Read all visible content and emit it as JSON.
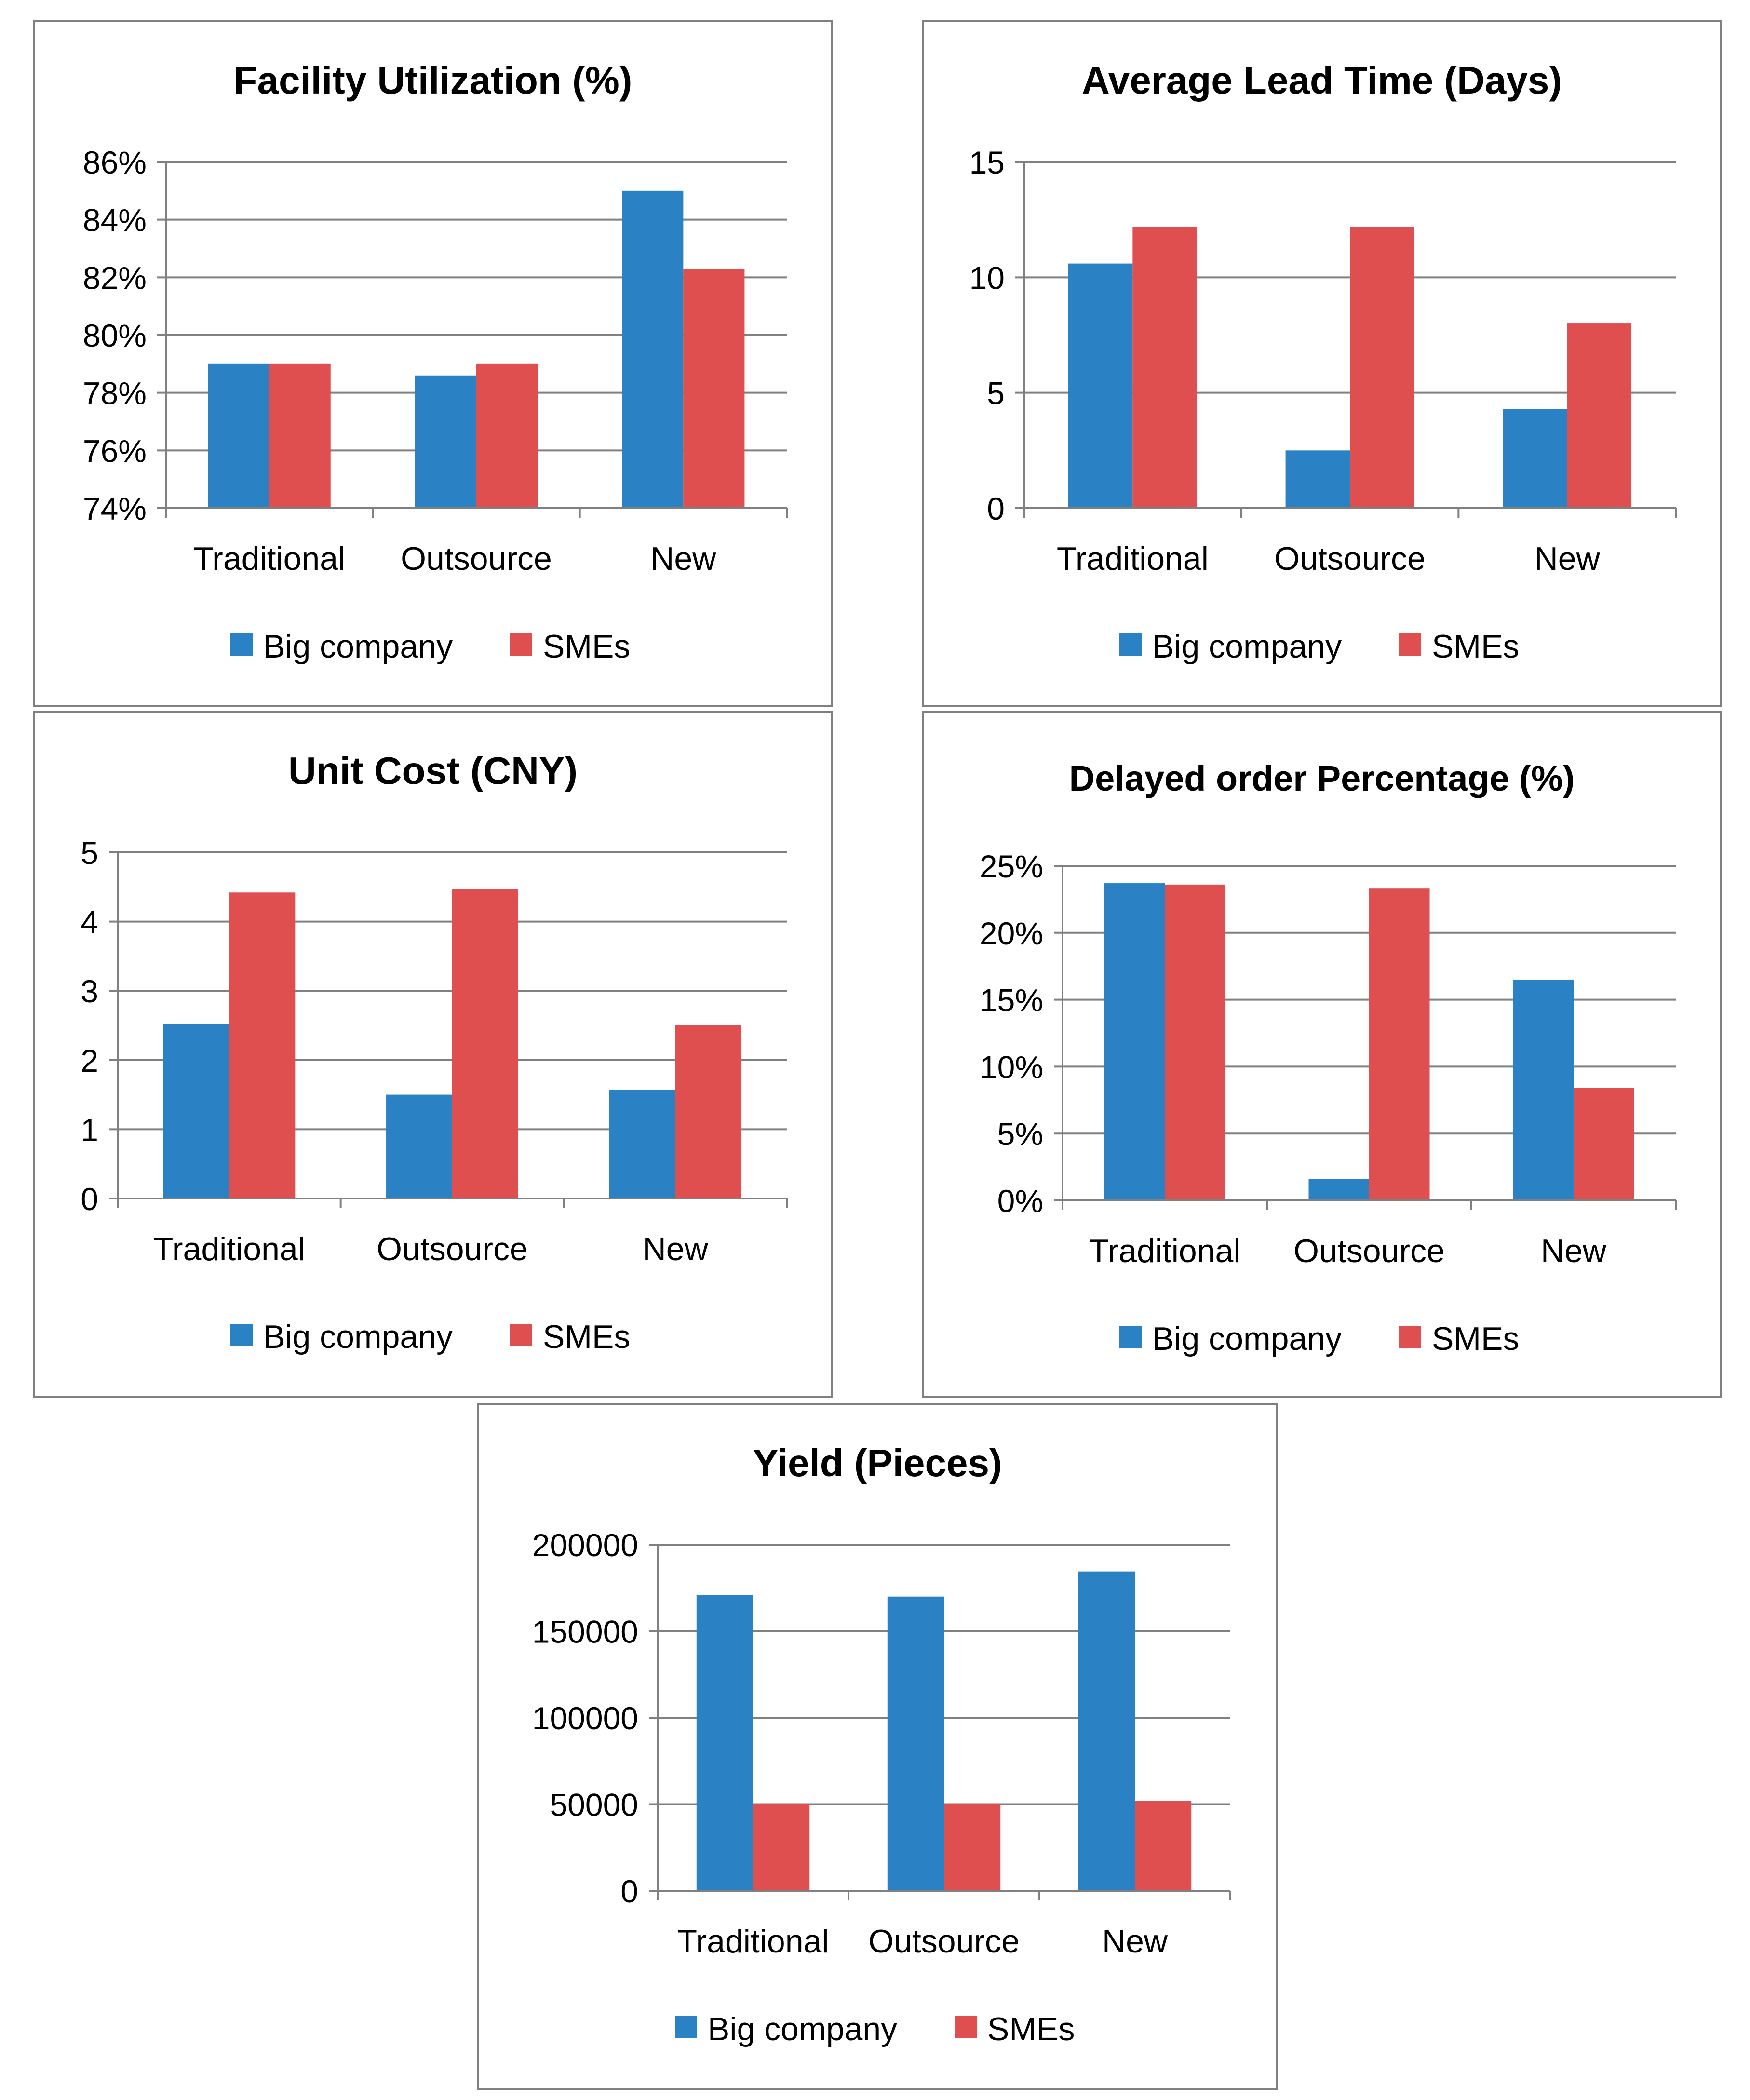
{
  "figure": {
    "legend_labels": [
      "Big company",
      "SMEs"
    ],
    "colors": {
      "big": "#2A81C4",
      "sme": "#E04F4F",
      "grid": "#808080",
      "axis": "#808080",
      "frame": "#808080"
    }
  },
  "chart_data": [
    {
      "type": "bar",
      "title": "Facility Utilization (%)",
      "categories": [
        "Traditional",
        "Outsource",
        "New"
      ],
      "series": [
        {
          "name": "Big company",
          "values": [
            79.0,
            78.6,
            85.0
          ]
        },
        {
          "name": "SMEs",
          "values": [
            79.0,
            79.0,
            82.3
          ]
        }
      ],
      "ylim": [
        74,
        86
      ],
      "yticks": [
        74,
        76,
        78,
        80,
        82,
        84,
        86
      ],
      "ytick_labels": [
        "74%",
        "76%",
        "78%",
        "80%",
        "82%",
        "84%",
        "86%"
      ],
      "xlabel": "",
      "ylabel": "",
      "grid": true,
      "legend": "bottom"
    },
    {
      "type": "bar",
      "title": "Average Lead Time (Days)",
      "categories": [
        "Traditional",
        "Outsource",
        "New"
      ],
      "series": [
        {
          "name": "Big company",
          "values": [
            10.6,
            2.5,
            4.3
          ]
        },
        {
          "name": "SMEs",
          "values": [
            12.2,
            12.2,
            8.0
          ]
        }
      ],
      "ylim": [
        0,
        15
      ],
      "yticks": [
        0,
        5,
        10,
        15
      ],
      "ytick_labels": [
        "0",
        "5",
        "10",
        "15"
      ],
      "xlabel": "",
      "ylabel": "",
      "grid": true,
      "legend": "bottom"
    },
    {
      "type": "bar",
      "title": "Unit Cost (CNY)",
      "categories": [
        "Traditional",
        "Outsource",
        "New"
      ],
      "series": [
        {
          "name": "Big company",
          "values": [
            2.52,
            1.5,
            1.57
          ]
        },
        {
          "name": "SMEs",
          "values": [
            4.42,
            4.47,
            2.5
          ]
        }
      ],
      "ylim": [
        0,
        5
      ],
      "yticks": [
        0,
        1,
        2,
        3,
        4,
        5
      ],
      "ytick_labels": [
        "0",
        "1",
        "2",
        "3",
        "4",
        "5"
      ],
      "xlabel": "",
      "ylabel": "",
      "grid": true,
      "legend": "bottom"
    },
    {
      "type": "bar",
      "title": "Delayed order Percentage  (%)",
      "categories": [
        "Traditional",
        "Outsource",
        "New"
      ],
      "series": [
        {
          "name": "Big company",
          "values": [
            23.7,
            1.6,
            16.5
          ]
        },
        {
          "name": "SMEs",
          "values": [
            23.6,
            23.3,
            8.4
          ]
        }
      ],
      "ylim": [
        0,
        25
      ],
      "yticks": [
        0,
        5,
        10,
        15,
        20,
        25
      ],
      "ytick_labels": [
        "0%",
        "5%",
        "10%",
        "15%",
        "20%",
        "25%"
      ],
      "xlabel": "",
      "ylabel": "",
      "grid": true,
      "legend": "bottom"
    },
    {
      "type": "bar",
      "title": "Yield (Pieces)",
      "categories": [
        "Traditional",
        "Outsource",
        "New"
      ],
      "series": [
        {
          "name": "Big company",
          "values": [
            171000,
            170000,
            184500
          ]
        },
        {
          "name": "SMEs",
          "values": [
            50000,
            50000,
            52000
          ]
        }
      ],
      "ylim": [
        0,
        200000
      ],
      "yticks": [
        0,
        50000,
        100000,
        150000,
        200000
      ],
      "ytick_labels": [
        "0",
        "50000",
        "100000",
        "150000",
        "200000"
      ],
      "xlabel": "",
      "ylabel": "",
      "grid": true,
      "legend": "bottom"
    }
  ]
}
